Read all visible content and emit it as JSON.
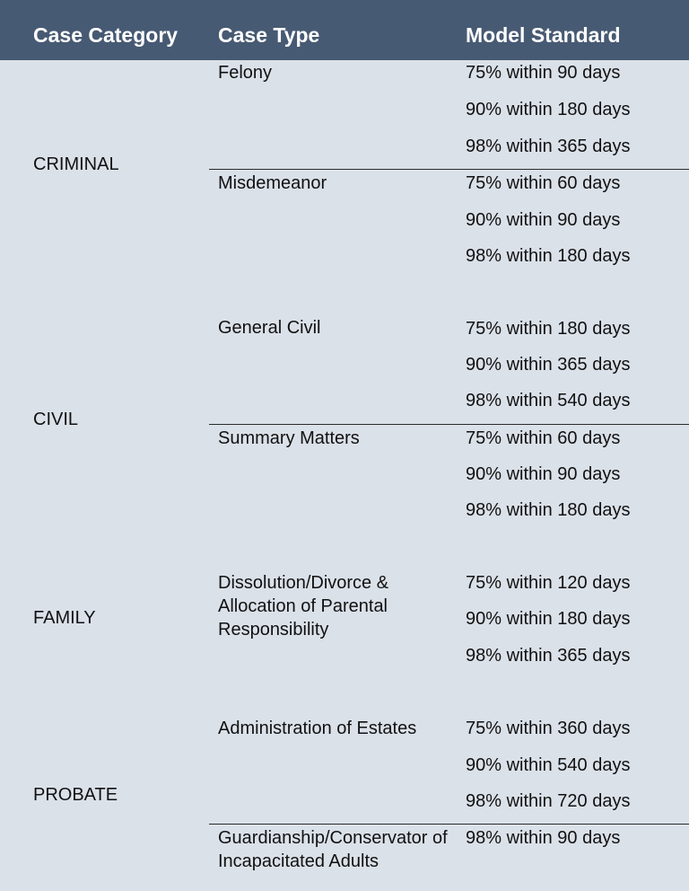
{
  "header": {
    "category": "Case Category",
    "type": "Case Type",
    "standard": "Model Standard"
  },
  "categories": [
    {
      "name": "CRIMINAL",
      "types": [
        {
          "name": "Felony",
          "standards": [
            "75% within 90 days",
            "90% within 180 days",
            "98% within 365 days"
          ]
        },
        {
          "name": "Misdemeanor",
          "standards": [
            "75% within 60 days",
            "90% within 90 days",
            "98% within 180 days"
          ]
        }
      ]
    },
    {
      "name": "CIVIL",
      "types": [
        {
          "name": "General Civil",
          "standards": [
            "75% within 180 days",
            "90% within 365 days",
            "98% within 540 days"
          ]
        },
        {
          "name": "Summary Matters",
          "standards": [
            "75% within 60 days",
            "90% within 90 days",
            "98% within 180 days"
          ]
        }
      ]
    },
    {
      "name": "FAMILY",
      "types": [
        {
          "name": "Dissolution/Divorce & Allocation of Parental Responsibility",
          "standards": [
            "75% within 120 days",
            "90% within 180 days",
            "98% within 365 days"
          ]
        }
      ]
    },
    {
      "name": "PROBATE",
      "types": [
        {
          "name": "Administration of Estates",
          "standards": [
            "75% within 360 days",
            "90% within 540 days",
            "98% within 720 days"
          ]
        },
        {
          "name": "Guardianship/Conservator of Incapacitated Adults",
          "standards": [
            "98% within 90 days"
          ]
        }
      ]
    }
  ]
}
